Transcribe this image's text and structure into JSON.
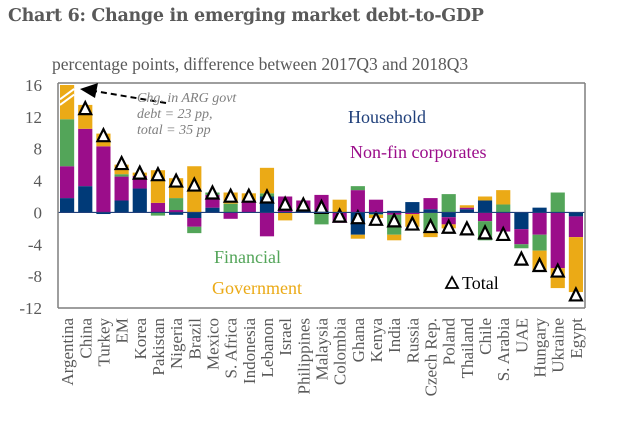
{
  "chart_data": {
    "type": "bar",
    "stacked": true,
    "title": "Chart 6:  Change in emerging market debt-to-GDP",
    "subtitle": "percentage points, difference between 2017Q3 and 2018Q3",
    "ylabel": "",
    "xlabel": "",
    "ylim": [
      -12,
      16
    ],
    "yticks": [
      16,
      12,
      8,
      4,
      0,
      -4,
      -8,
      -12
    ],
    "grid": false,
    "categories": [
      "Argentina",
      "China",
      "Turkey",
      "EM",
      "Korea",
      "Pakistan",
      "Nigeria",
      "Brazil",
      "Mexico",
      "S. Africa",
      "Indonesia",
      "Lebanon",
      "Israel",
      "Philippines",
      "Malaysia",
      "Colombia",
      "Ghana",
      "Kenya",
      "India",
      "Russia",
      "Czech Rep.",
      "Poland",
      "Thailand",
      "Chile",
      "S. Arabia",
      "UAE",
      "Hungary",
      "Ukraine",
      "Egypt"
    ],
    "series": [
      {
        "name": "Household",
        "color": "#003a78",
        "values": [
          1.8,
          3.3,
          -0.2,
          1.5,
          3.0,
          0.0,
          -0.3,
          -0.7,
          0.6,
          0.0,
          0.0,
          2.0,
          0.0,
          0.3,
          0.2,
          0.0,
          -2.8,
          -0.2,
          0.2,
          1.3,
          0.4,
          -0.6,
          0.4,
          1.5,
          0.0,
          -2.1,
          0.6,
          0.0,
          -0.5
        ]
      },
      {
        "name": "Non-fin corporates",
        "color": "#9b0d8a",
        "values": [
          4.0,
          7.2,
          8.3,
          3.0,
          1.6,
          1.2,
          0.3,
          -1.1,
          1.6,
          -0.8,
          1.5,
          -3.0,
          2.0,
          1.2,
          2.0,
          -1.3,
          2.8,
          1.6,
          -0.3,
          -0.2,
          1.4,
          -0.9,
          0.2,
          -1.1,
          -2.4,
          -1.9,
          -2.8,
          -7.0,
          -2.6
        ]
      },
      {
        "name": "Financial",
        "color": "#53a559",
        "values": [
          5.9,
          0.0,
          0.0,
          0.3,
          0.0,
          -0.4,
          1.5,
          -0.8,
          0.3,
          1.1,
          0.0,
          0.4,
          0.0,
          0.0,
          -1.5,
          0.0,
          0.5,
          -0.1,
          -2.5,
          0.0,
          -2.5,
          2.3,
          0.0,
          -2.4,
          1.0,
          -0.5,
          -2.0,
          2.5,
          0.0
        ]
      },
      {
        "name": "Government",
        "color": "#ebaa16",
        "values": [
          23.0,
          3.0,
          1.6,
          1.2,
          0.4,
          4.1,
          2.5,
          5.8,
          0.0,
          1.4,
          0.9,
          3.2,
          -1.0,
          0.0,
          0.0,
          1.6,
          -0.5,
          -0.4,
          -0.7,
          -1.6,
          -0.6,
          -0.5,
          0.3,
          0.5,
          1.8,
          0.0,
          -2.5,
          -2.5,
          -6.9
        ]
      }
    ],
    "totals": [
      35,
      13.1,
      9.7,
      6.2,
      5.0,
      4.8,
      4.0,
      3.5,
      2.5,
      2.1,
      2.1,
      2.0,
      1.1,
      1.0,
      0.7,
      -0.4,
      -0.6,
      -0.8,
      -1.0,
      -1.4,
      -1.7,
      -1.8,
      -2.0,
      -2.5,
      -2.7,
      -5.8,
      -6.6,
      -7.3,
      -10.3
    ],
    "axis_break": {
      "category": "Argentina",
      "note_lines": [
        "Chg. in ARG govt",
        "debt = 23 pp,",
        "total = 35 pp"
      ]
    },
    "legend": {
      "household": "Household",
      "nonfin": "Non-fin corporates",
      "financial": "Financial",
      "government": "Government",
      "total": "Total",
      "total_marker": "triangle"
    }
  }
}
